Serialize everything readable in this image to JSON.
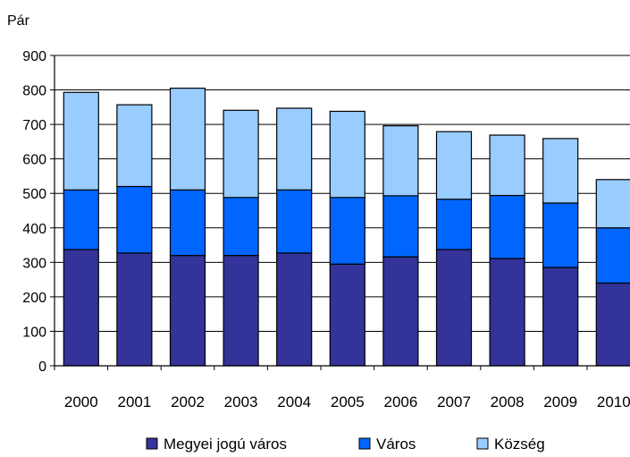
{
  "chart_data": {
    "type": "bar",
    "stacked": true,
    "ylabel": "Pár",
    "xlabel": "",
    "categories": [
      "2000",
      "2001",
      "2002",
      "2003",
      "2004",
      "2005",
      "2006",
      "2007",
      "2008",
      "2009",
      "2010"
    ],
    "series": [
      {
        "name": "Megyei jogú város",
        "color": "#333399",
        "values": [
          337,
          327,
          320,
          320,
          327,
          295,
          316,
          337,
          311,
          285,
          240
        ]
      },
      {
        "name": "Város",
        "color": "#0066FF",
        "values": [
          173,
          193,
          190,
          168,
          183,
          193,
          177,
          146,
          183,
          187,
          160
        ]
      },
      {
        "name": "Község",
        "color": "#99CCFF",
        "values": [
          283,
          237,
          295,
          253,
          237,
          250,
          203,
          196,
          175,
          187,
          140
        ]
      }
    ],
    "ylim": [
      0,
      900
    ],
    "yticks": [
      0,
      100,
      200,
      300,
      400,
      500,
      600,
      700,
      800,
      900
    ],
    "grid": true,
    "legend_position": "bottom"
  }
}
